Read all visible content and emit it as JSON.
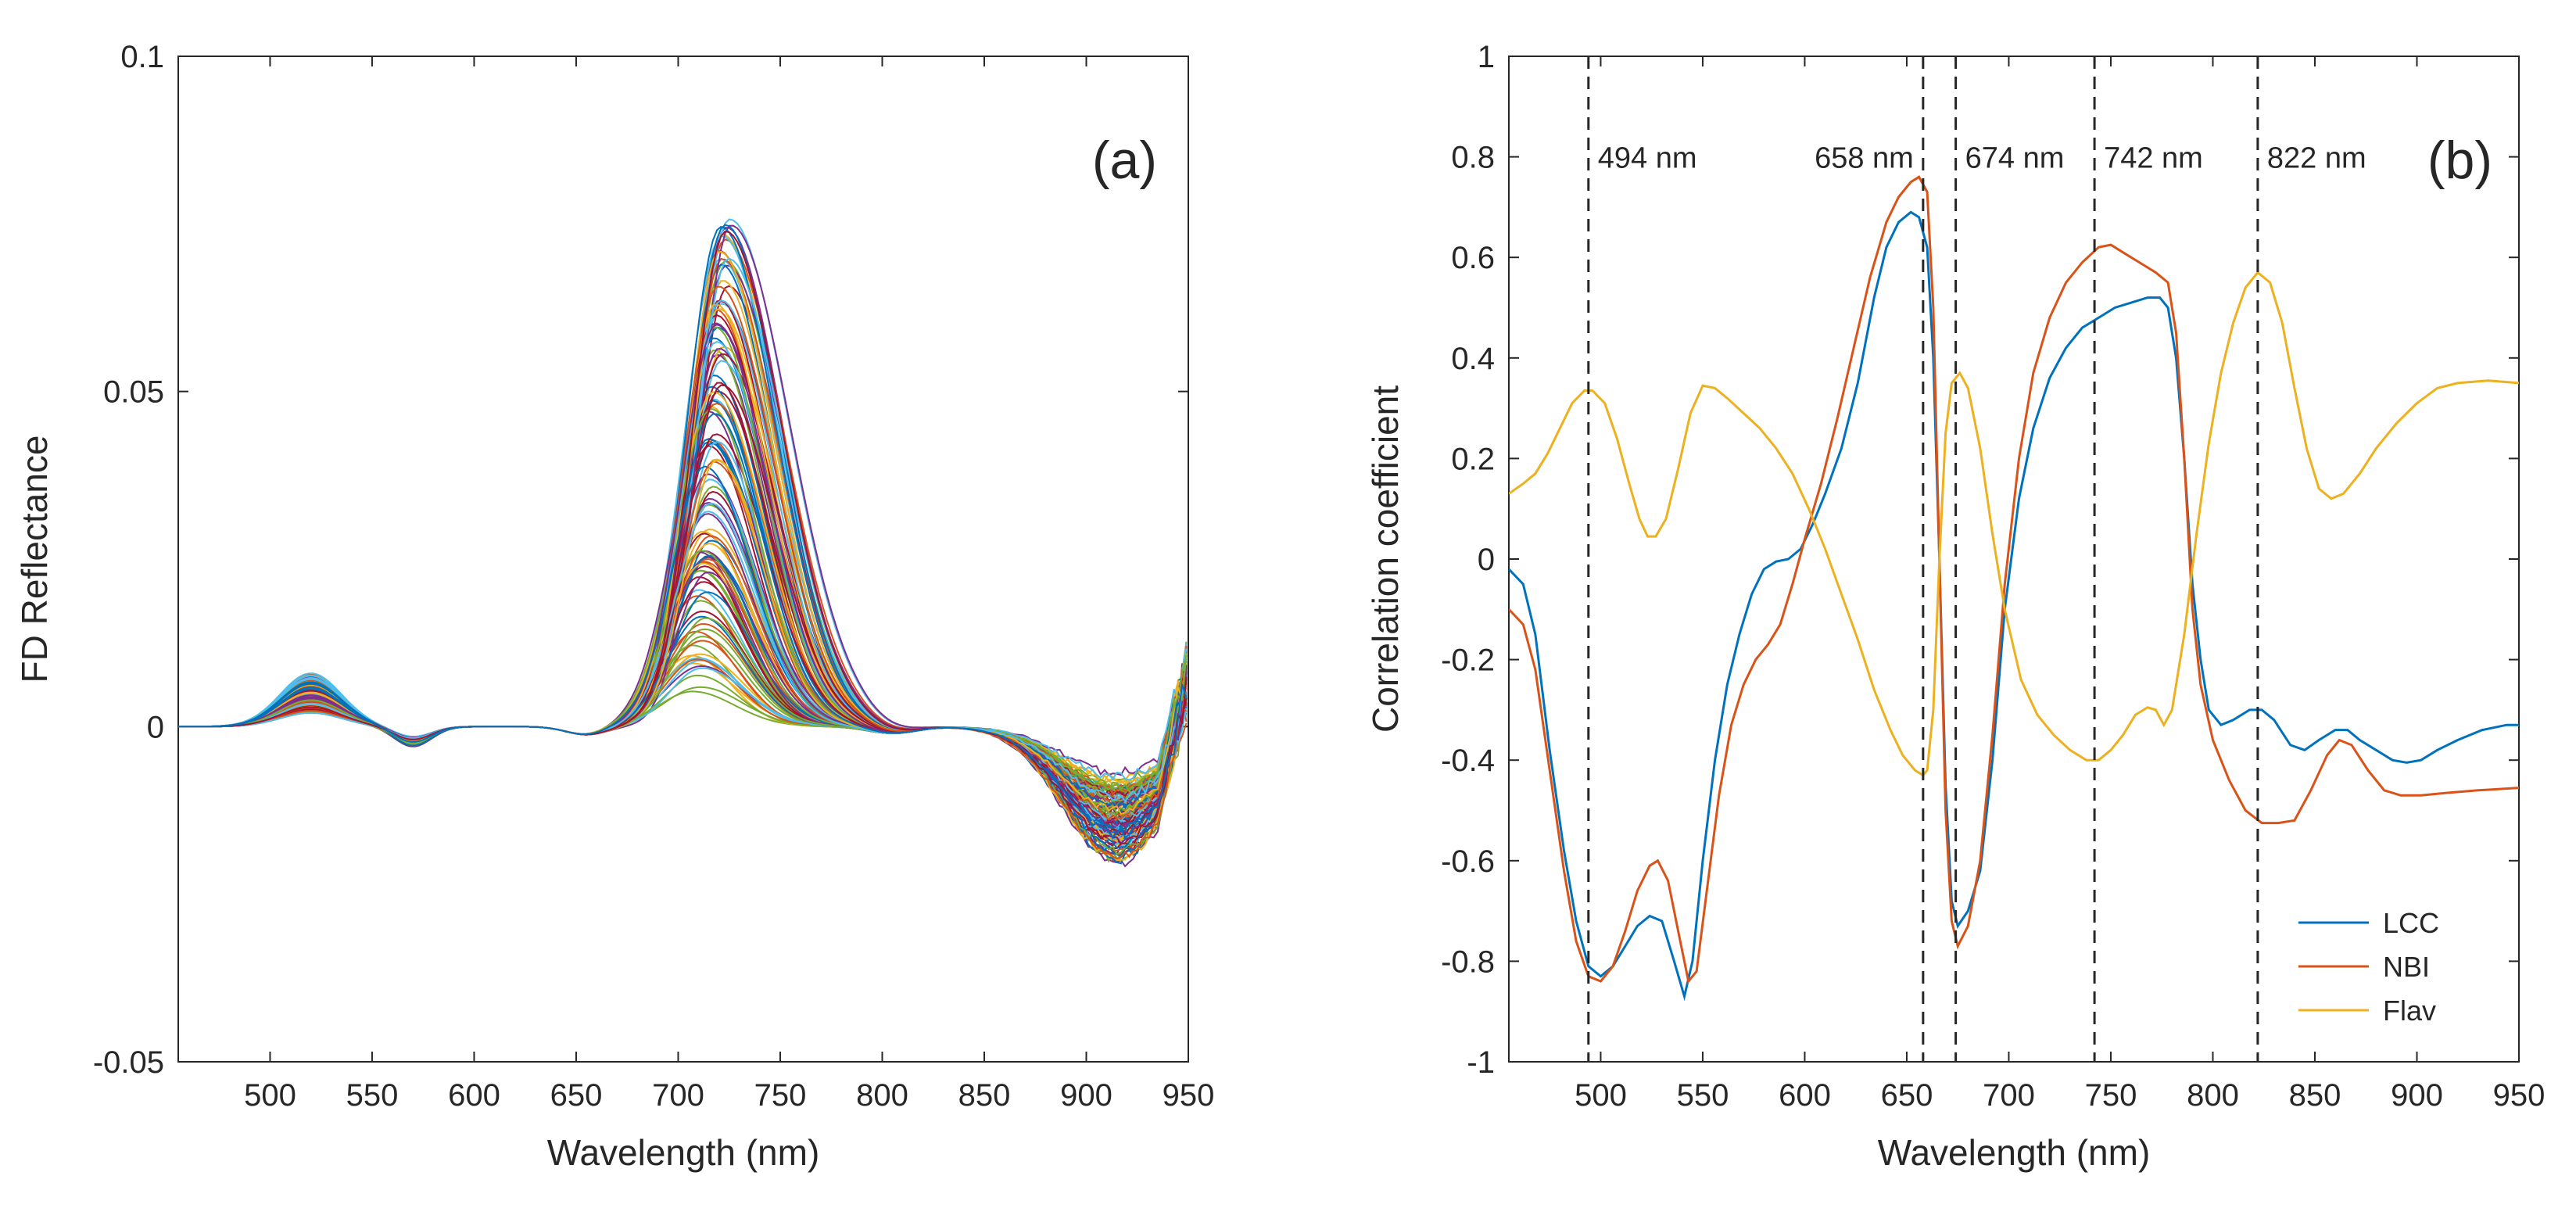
{
  "chart_data": [
    {
      "panel": "(a)",
      "type": "line",
      "title": "",
      "xlabel": "Wavelength (nm)",
      "ylabel": "FD Reflectance",
      "xlim": [
        455,
        950
      ],
      "ylim": [
        -0.05,
        0.1
      ],
      "x_ticks": [
        500,
        550,
        600,
        650,
        700,
        750,
        800,
        850,
        900,
        950
      ],
      "y_ticks": [
        -0.05,
        0,
        0.05,
        0.1
      ],
      "y_tick_labels": [
        "-0.05",
        "0",
        "0.05",
        "0.1"
      ],
      "series_count": 120,
      "series_description": "first-derivative reflectance spectra of individual samples",
      "features": {
        "blue_bump_peak_x": 520,
        "blue_bump_peak_y_range": [
          0.002,
          0.008
        ],
        "red_edge_peak_x": 722,
        "red_edge_peak_y_range": [
          0.004,
          0.076
        ],
        "nir_trough_x": 915,
        "nir_trough_y_range": [
          -0.006,
          -0.021
        ]
      },
      "colors": [
        "#0072bd",
        "#d95319",
        "#edb120",
        "#7e2f8e",
        "#77ac30",
        "#4dbeee",
        "#a2142f"
      ]
    },
    {
      "panel": "(b)",
      "type": "line",
      "title": "",
      "xlabel": "Wavelength (nm)",
      "ylabel": "Correlation coefficient",
      "xlim": [
        455,
        950
      ],
      "ylim": [
        -1,
        1
      ],
      "x_ticks": [
        500,
        550,
        600,
        650,
        700,
        750,
        800,
        850,
        900,
        950
      ],
      "y_ticks": [
        -1,
        -0.8,
        -0.6,
        -0.4,
        -0.2,
        0,
        0.2,
        0.4,
        0.6,
        0.8,
        1
      ],
      "y_tick_labels": [
        "-1",
        "-0.8",
        "-0.6",
        "-0.4",
        "-0.2",
        "0",
        "0.2",
        "0.4",
        "0.6",
        "0.8",
        "1"
      ],
      "legend_position": "bottom-right",
      "vlines": [
        {
          "x": 494,
          "label": "494 nm"
        },
        {
          "x": 658,
          "label": "658 nm"
        },
        {
          "x": 674,
          "label": "674 nm"
        },
        {
          "x": 742,
          "label": "742 nm"
        },
        {
          "x": 822,
          "label": "822 nm"
        }
      ],
      "series": [
        {
          "name": "LCC",
          "color": "#0072bd",
          "points": [
            [
              455,
              -0.02
            ],
            [
              462,
              -0.05
            ],
            [
              468,
              -0.15
            ],
            [
              475,
              -0.38
            ],
            [
              482,
              -0.58
            ],
            [
              488,
              -0.72
            ],
            [
              494,
              -0.81
            ],
            [
              500,
              -0.83
            ],
            [
              506,
              -0.81
            ],
            [
              512,
              -0.77
            ],
            [
              518,
              -0.73
            ],
            [
              524,
              -0.71
            ],
            [
              530,
              -0.72
            ],
            [
              536,
              -0.8
            ],
            [
              541,
              -0.87
            ],
            [
              545,
              -0.8
            ],
            [
              550,
              -0.6
            ],
            [
              556,
              -0.4
            ],
            [
              562,
              -0.25
            ],
            [
              568,
              -0.15
            ],
            [
              574,
              -0.07
            ],
            [
              580,
              -0.02
            ],
            [
              586,
              -0.005
            ],
            [
              592,
              0.0
            ],
            [
              598,
              0.02
            ],
            [
              604,
              0.07
            ],
            [
              610,
              0.13
            ],
            [
              618,
              0.22
            ],
            [
              626,
              0.35
            ],
            [
              634,
              0.52
            ],
            [
              640,
              0.62
            ],
            [
              646,
              0.67
            ],
            [
              652,
              0.69
            ],
            [
              656,
              0.68
            ],
            [
              660,
              0.62
            ],
            [
              663,
              0.4
            ],
            [
              666,
              0.0
            ],
            [
              669,
              -0.45
            ],
            [
              672,
              -0.68
            ],
            [
              675,
              -0.73
            ],
            [
              680,
              -0.7
            ],
            [
              686,
              -0.62
            ],
            [
              692,
              -0.4
            ],
            [
              698,
              -0.1
            ],
            [
              705,
              0.12
            ],
            [
              712,
              0.26
            ],
            [
              720,
              0.36
            ],
            [
              728,
              0.42
            ],
            [
              736,
              0.46
            ],
            [
              744,
              0.48
            ],
            [
              752,
              0.5
            ],
            [
              760,
              0.51
            ],
            [
              768,
              0.52
            ],
            [
              774,
              0.52
            ],
            [
              778,
              0.5
            ],
            [
              782,
              0.4
            ],
            [
              786,
              0.2
            ],
            [
              790,
              -0.05
            ],
            [
              794,
              -0.2
            ],
            [
              798,
              -0.3
            ],
            [
              804,
              -0.33
            ],
            [
              810,
              -0.32
            ],
            [
              818,
              -0.3
            ],
            [
              824,
              -0.3
            ],
            [
              830,
              -0.32
            ],
            [
              838,
              -0.37
            ],
            [
              845,
              -0.38
            ],
            [
              852,
              -0.36
            ],
            [
              860,
              -0.34
            ],
            [
              866,
              -0.34
            ],
            [
              872,
              -0.36
            ],
            [
              880,
              -0.38
            ],
            [
              888,
              -0.4
            ],
            [
              895,
              -0.405
            ],
            [
              902,
              -0.4
            ],
            [
              910,
              -0.38
            ],
            [
              920,
              -0.36
            ],
            [
              932,
              -0.34
            ],
            [
              944,
              -0.33
            ],
            [
              950,
              -0.33
            ]
          ]
        },
        {
          "name": "NBI",
          "color": "#d95319",
          "points": [
            [
              455,
              -0.1
            ],
            [
              462,
              -0.13
            ],
            [
              468,
              -0.22
            ],
            [
              475,
              -0.42
            ],
            [
              482,
              -0.62
            ],
            [
              488,
              -0.76
            ],
            [
              494,
              -0.83
            ],
            [
              500,
              -0.84
            ],
            [
              506,
              -0.81
            ],
            [
              512,
              -0.74
            ],
            [
              518,
              -0.66
            ],
            [
              524,
              -0.61
            ],
            [
              528,
              -0.6
            ],
            [
              533,
              -0.64
            ],
            [
              538,
              -0.74
            ],
            [
              543,
              -0.84
            ],
            [
              547,
              -0.82
            ],
            [
              552,
              -0.66
            ],
            [
              558,
              -0.47
            ],
            [
              564,
              -0.33
            ],
            [
              570,
              -0.25
            ],
            [
              576,
              -0.2
            ],
            [
              582,
              -0.17
            ],
            [
              588,
              -0.13
            ],
            [
              594,
              -0.05
            ],
            [
              600,
              0.04
            ],
            [
              608,
              0.15
            ],
            [
              616,
              0.28
            ],
            [
              624,
              0.42
            ],
            [
              632,
              0.56
            ],
            [
              640,
              0.67
            ],
            [
              646,
              0.72
            ],
            [
              652,
              0.75
            ],
            [
              656,
              0.76
            ],
            [
              660,
              0.73
            ],
            [
              663,
              0.5
            ],
            [
              666,
              0.0
            ],
            [
              669,
              -0.5
            ],
            [
              672,
              -0.72
            ],
            [
              675,
              -0.77
            ],
            [
              680,
              -0.73
            ],
            [
              686,
              -0.6
            ],
            [
              692,
              -0.35
            ],
            [
              698,
              -0.05
            ],
            [
              705,
              0.2
            ],
            [
              712,
              0.37
            ],
            [
              720,
              0.48
            ],
            [
              728,
              0.55
            ],
            [
              736,
              0.59
            ],
            [
              744,
              0.62
            ],
            [
              750,
              0.625
            ],
            [
              756,
              0.61
            ],
            [
              764,
              0.59
            ],
            [
              772,
              0.57
            ],
            [
              778,
              0.55
            ],
            [
              782,
              0.45
            ],
            [
              786,
              0.2
            ],
            [
              790,
              -0.1
            ],
            [
              794,
              -0.25
            ],
            [
              800,
              -0.36
            ],
            [
              808,
              -0.44
            ],
            [
              816,
              -0.5
            ],
            [
              824,
              -0.525
            ],
            [
              832,
              -0.525
            ],
            [
              840,
              -0.52
            ],
            [
              848,
              -0.46
            ],
            [
              856,
              -0.39
            ],
            [
              862,
              -0.36
            ],
            [
              868,
              -0.37
            ],
            [
              876,
              -0.42
            ],
            [
              884,
              -0.46
            ],
            [
              892,
              -0.47
            ],
            [
              902,
              -0.47
            ],
            [
              915,
              -0.465
            ],
            [
              930,
              -0.46
            ],
            [
              950,
              -0.455
            ]
          ]
        },
        {
          "name": "Flav",
          "color": "#edb120",
          "points": [
            [
              455,
              0.13
            ],
            [
              462,
              0.15
            ],
            [
              468,
              0.17
            ],
            [
              474,
              0.21
            ],
            [
              480,
              0.26
            ],
            [
              486,
              0.31
            ],
            [
              492,
              0.335
            ],
            [
              496,
              0.335
            ],
            [
              502,
              0.31
            ],
            [
              508,
              0.24
            ],
            [
              514,
              0.15
            ],
            [
              519,
              0.08
            ],
            [
              523,
              0.045
            ],
            [
              527,
              0.045
            ],
            [
              532,
              0.08
            ],
            [
              538,
              0.18
            ],
            [
              544,
              0.29
            ],
            [
              550,
              0.345
            ],
            [
              556,
              0.34
            ],
            [
              562,
              0.32
            ],
            [
              570,
              0.29
            ],
            [
              578,
              0.26
            ],
            [
              586,
              0.22
            ],
            [
              594,
              0.17
            ],
            [
              602,
              0.1
            ],
            [
              610,
              0.02
            ],
            [
              618,
              -0.07
            ],
            [
              626,
              -0.16
            ],
            [
              634,
              -0.26
            ],
            [
              642,
              -0.34
            ],
            [
              648,
              -0.39
            ],
            [
              654,
              -0.42
            ],
            [
              658,
              -0.43
            ],
            [
              660,
              -0.42
            ],
            [
              663,
              -0.3
            ],
            [
              666,
              0.0
            ],
            [
              669,
              0.25
            ],
            [
              672,
              0.35
            ],
            [
              676,
              0.37
            ],
            [
              680,
              0.34
            ],
            [
              686,
              0.22
            ],
            [
              692,
              0.05
            ],
            [
              698,
              -0.1
            ],
            [
              706,
              -0.24
            ],
            [
              714,
              -0.31
            ],
            [
              722,
              -0.35
            ],
            [
              730,
              -0.38
            ],
            [
              738,
              -0.4
            ],
            [
              744,
              -0.4
            ],
            [
              750,
              -0.38
            ],
            [
              756,
              -0.35
            ],
            [
              762,
              -0.31
            ],
            [
              768,
              -0.295
            ],
            [
              772,
              -0.3
            ],
            [
              776,
              -0.33
            ],
            [
              780,
              -0.3
            ],
            [
              786,
              -0.15
            ],
            [
              792,
              0.05
            ],
            [
              798,
              0.23
            ],
            [
              804,
              0.37
            ],
            [
              810,
              0.47
            ],
            [
              816,
              0.54
            ],
            [
              822,
              0.57
            ],
            [
              828,
              0.55
            ],
            [
              834,
              0.47
            ],
            [
              840,
              0.34
            ],
            [
              846,
              0.22
            ],
            [
              852,
              0.14
            ],
            [
              858,
              0.12
            ],
            [
              864,
              0.13
            ],
            [
              872,
              0.17
            ],
            [
              880,
              0.22
            ],
            [
              890,
              0.27
            ],
            [
              900,
              0.31
            ],
            [
              910,
              0.34
            ],
            [
              920,
              0.35
            ],
            [
              935,
              0.355
            ],
            [
              950,
              0.35
            ]
          ]
        }
      ]
    }
  ]
}
